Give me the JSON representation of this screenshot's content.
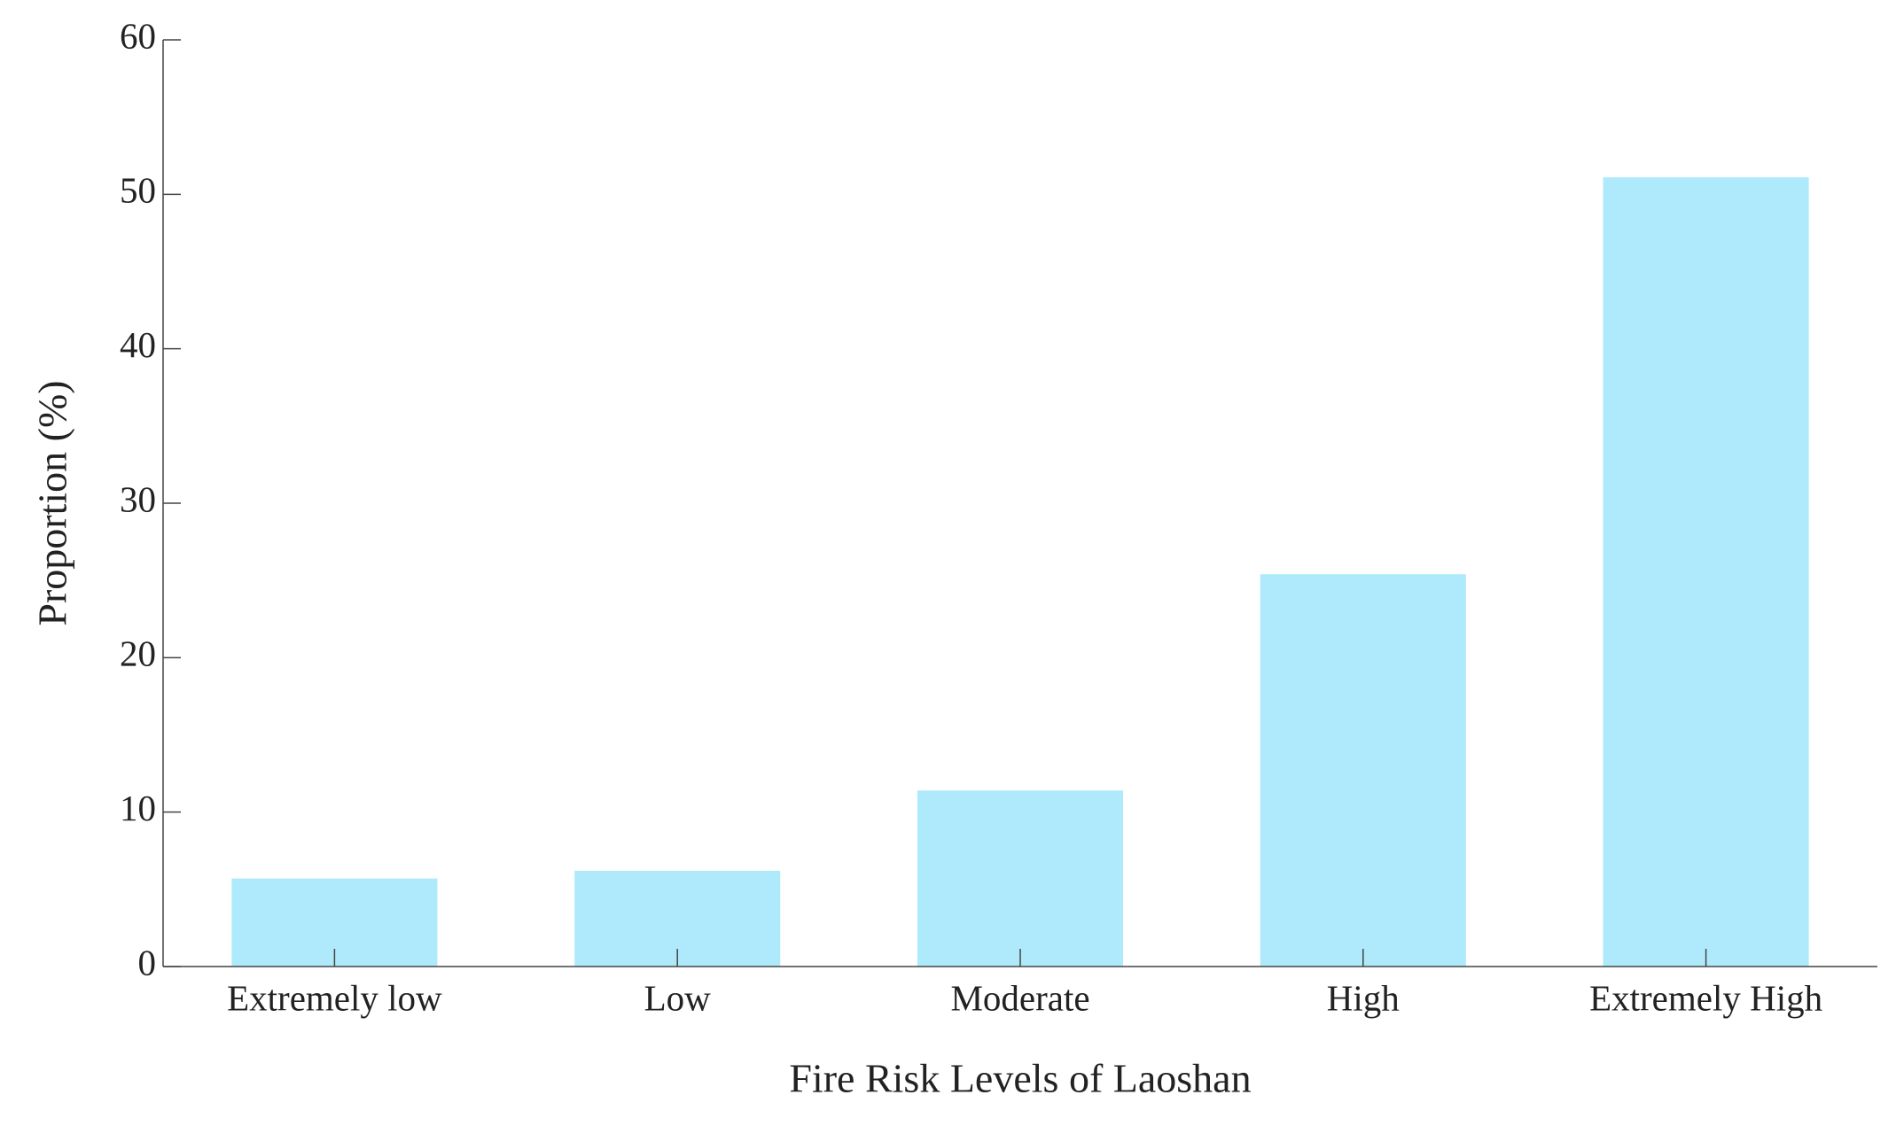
{
  "chart_data": {
    "type": "bar",
    "x_label": "Fire Risk Levels of Laoshan",
    "y_label": "Proportion (%)",
    "categories": [
      "Extremely low",
      "Low",
      "Moderate",
      "High",
      "Extremely High"
    ],
    "values": [
      5.7,
      6.2,
      11.4,
      25.4,
      51.1
    ],
    "color": "#aeeafc",
    "ylim": [
      0,
      60
    ],
    "yticks": [
      0,
      10,
      20,
      30,
      40,
      50,
      60
    ],
    "grid": false
  }
}
